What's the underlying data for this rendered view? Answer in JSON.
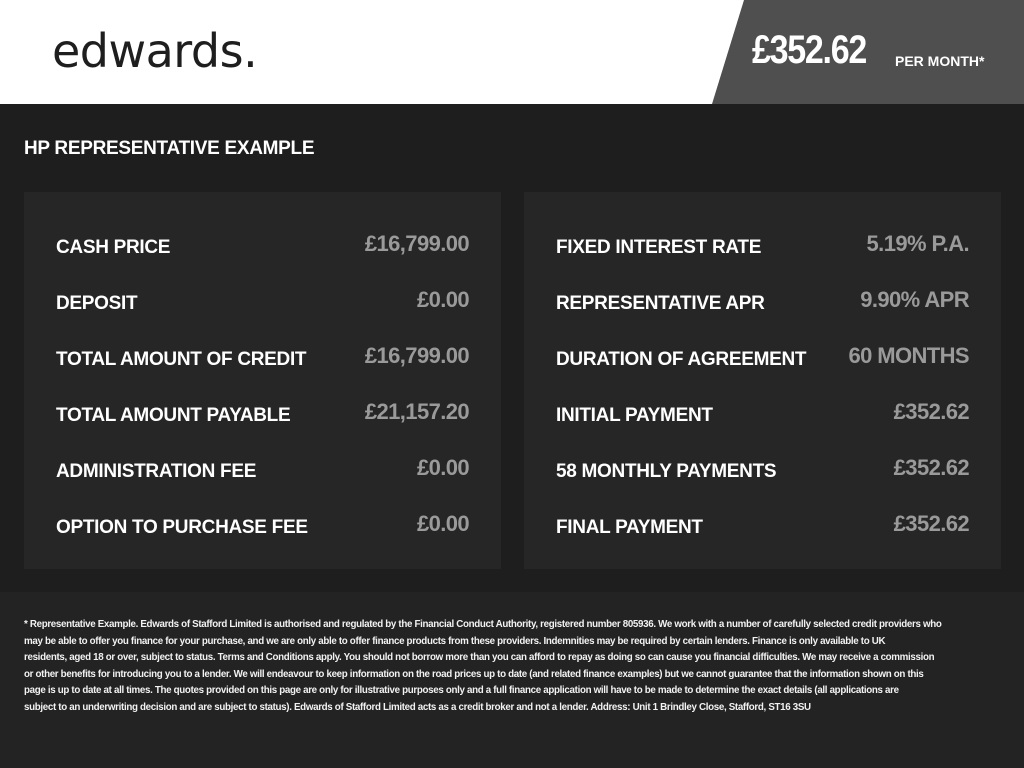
{
  "header": {
    "logo": "edwards.",
    "price": "£352.62",
    "per_month": "PER MONTH*"
  },
  "section_title": "HP REPRESENTATIVE EXAMPLE",
  "left": [
    {
      "label": "CASH PRICE",
      "value": "£16,799.00"
    },
    {
      "label": "DEPOSIT",
      "value": "£0.00"
    },
    {
      "label": "TOTAL AMOUNT OF CREDIT",
      "value": "£16,799.00"
    },
    {
      "label": "TOTAL AMOUNT PAYABLE",
      "value": "£21,157.20"
    },
    {
      "label": "ADMINISTRATION FEE",
      "value": "£0.00"
    },
    {
      "label": "OPTION TO PURCHASE FEE",
      "value": "£0.00"
    }
  ],
  "right": [
    {
      "label": "FIXED INTEREST RATE",
      "value": "5.19% P.A."
    },
    {
      "label": "REPRESENTATIVE APR",
      "value": "9.90% APR"
    },
    {
      "label": "DURATION OF AGREEMENT",
      "value": "60 MONTHS"
    },
    {
      "label": "INITIAL PAYMENT",
      "value": "£352.62"
    },
    {
      "label": "58 MONTHLY PAYMENTS",
      "value": "£352.62"
    },
    {
      "label": "FINAL PAYMENT",
      "value": "£352.62"
    }
  ],
  "footer_lines": [
    "* Representative Example. Edwards of Stafford Limited is authorised and regulated by the Financial Conduct Authority, registered number 805936. We work with a number of carefully selected credit providers who",
    "may be able to offer you finance for your purchase, and we are only able to offer finance products from these providers. Indemnities may be required by certain lenders. Finance is only available to UK",
    "residents, aged 18 or over, subject to status. Terms and Conditions apply. You should not borrow more than you can afford to repay as doing so can cause you financial difficulties. We may receive a commission",
    "or other benefits for introducing you to a lender. We will endeavour to keep information on the road prices up to date (and related finance examples) but we cannot guarantee that the information shown on this",
    "page is up to date at all times. The quotes provided on this page are only for illustrative purposes only and a full finance application will have to be made to determine the exact details (all applications are",
    "subject to an underwriting decision and are subject to status). Edwards of Stafford Limited acts as a credit broker and not a lender. Address: Unit 1 Brindley Close, Stafford, ST16 3SU"
  ]
}
